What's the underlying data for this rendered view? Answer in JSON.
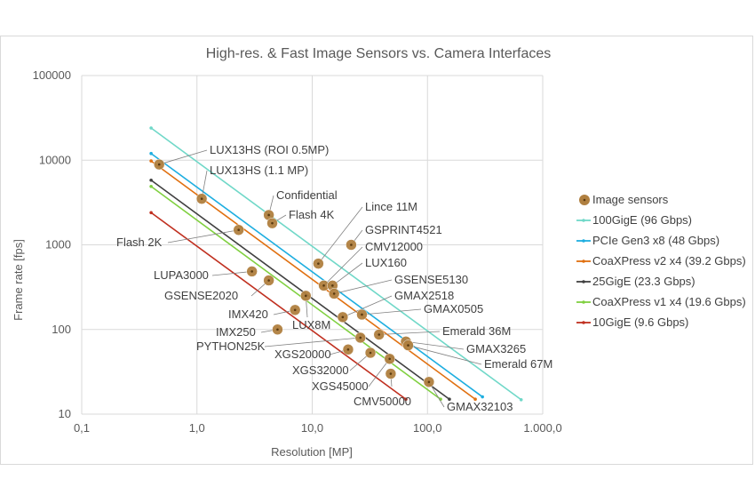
{
  "chart_data": {
    "type": "scatter",
    "title": "High-res. & Fast Image Sensors vs. Camera Interfaces",
    "xlabel": "Resolution [MP]",
    "ylabel": "Frame rate [fps]",
    "x_scale": "log",
    "y_scale": "log",
    "xlim": [
      0.1,
      1000
    ],
    "ylim": [
      10,
      100000
    ],
    "x_tick_labels": [
      "0,1",
      "1,0",
      "10,0",
      "100,0",
      "1.000,0"
    ],
    "y_tick_labels": [
      "10",
      "100",
      "1000",
      "10000",
      "100000"
    ],
    "grid": "both",
    "legend_position": "right",
    "colors": {
      "sensors": "#b08040",
      "gbe100": "#70d8c8",
      "pcie": "#1eaee0",
      "coax2": "#e07010",
      "gbe25": "#404040",
      "coax1": "#80d040",
      "gbe10": "#c03020",
      "leader": "#808080"
    },
    "sensors": {
      "name": "Image sensors",
      "points": [
        {
          "label": "LUX13HS (ROI 0.5MP)",
          "x": 0.47,
          "y": 8900
        },
        {
          "label": "LUX13HS (1.1 MP)",
          "x": 1.1,
          "y": 3500
        },
        {
          "label": "Flash 2K",
          "x": 2.3,
          "y": 1500
        },
        {
          "label": "Confidential",
          "x": 4.2,
          "y": 2250
        },
        {
          "label": "Flash 4K",
          "x": 4.5,
          "y": 1800
        },
        {
          "label": "LUPA3000",
          "x": 3.0,
          "y": 485
        },
        {
          "label": "GSENSE2020",
          "x": 4.2,
          "y": 380
        },
        {
          "label": "IMX420",
          "x": 7.1,
          "y": 170
        },
        {
          "label": "IMX250",
          "x": 5.0,
          "y": 100
        },
        {
          "label": "LUX8M",
          "x": 8.8,
          "y": 250
        },
        {
          "label": "Lince 11M",
          "x": 11.3,
          "y": 600
        },
        {
          "label": "GSPRINT4521",
          "x": 21.8,
          "y": 1000
        },
        {
          "label": "CMV12000",
          "x": 12.6,
          "y": 330
        },
        {
          "label": "LUX160",
          "x": 15.0,
          "y": 330
        },
        {
          "label": "GSENSE5130",
          "x": 15.5,
          "y": 265
        },
        {
          "label": "GMAX2518",
          "x": 18.4,
          "y": 140
        },
        {
          "label": "GMAX0505",
          "x": 27.0,
          "y": 150
        },
        {
          "label": "PYTHON25K",
          "x": 26.2,
          "y": 80
        },
        {
          "label": "XGS20000",
          "x": 20.5,
          "y": 58
        },
        {
          "label": "XGS32000",
          "x": 32.0,
          "y": 53
        },
        {
          "label": "XGS45000",
          "x": 47.0,
          "y": 45
        },
        {
          "label": "CMV50000",
          "x": 48.0,
          "y": 30
        },
        {
          "label": "Emerald 36M",
          "x": 38.0,
          "y": 87
        },
        {
          "label": "GMAX3265",
          "x": 65.0,
          "y": 72
        },
        {
          "label": "Emerald 67M",
          "x": 68.0,
          "y": 65
        },
        {
          "label": "GMAX32103",
          "x": 103.0,
          "y": 24
        }
      ]
    },
    "series": [
      {
        "name": "100GigE (96 Gbps)",
        "color_key": "gbe100",
        "x": [
          0.4,
          650
        ],
        "y": [
          24000,
          14.8
        ]
      },
      {
        "name": "PCIe Gen3 x8 (48 Gbps)",
        "color_key": "pcie",
        "x": [
          0.4,
          300
        ],
        "y": [
          12000,
          16
        ]
      },
      {
        "name": "CoaXPress v2 x4 (39.2 Gbps)",
        "color_key": "coax2",
        "x": [
          0.4,
          260
        ],
        "y": [
          9800,
          15
        ]
      },
      {
        "name": "25GigE (23.3 Gbps)",
        "color_key": "gbe25",
        "x": [
          0.4,
          155
        ],
        "y": [
          5800,
          15
        ]
      },
      {
        "name": "CoaXPress v1 x4 (19.6 Gbps)",
        "color_key": "coax1",
        "x": [
          0.4,
          130
        ],
        "y": [
          4900,
          15
        ]
      },
      {
        "name": "10GigE (9.6 Gbps)",
        "color_key": "gbe10",
        "x": [
          0.4,
          65
        ],
        "y": [
          2400,
          15
        ]
      }
    ]
  }
}
